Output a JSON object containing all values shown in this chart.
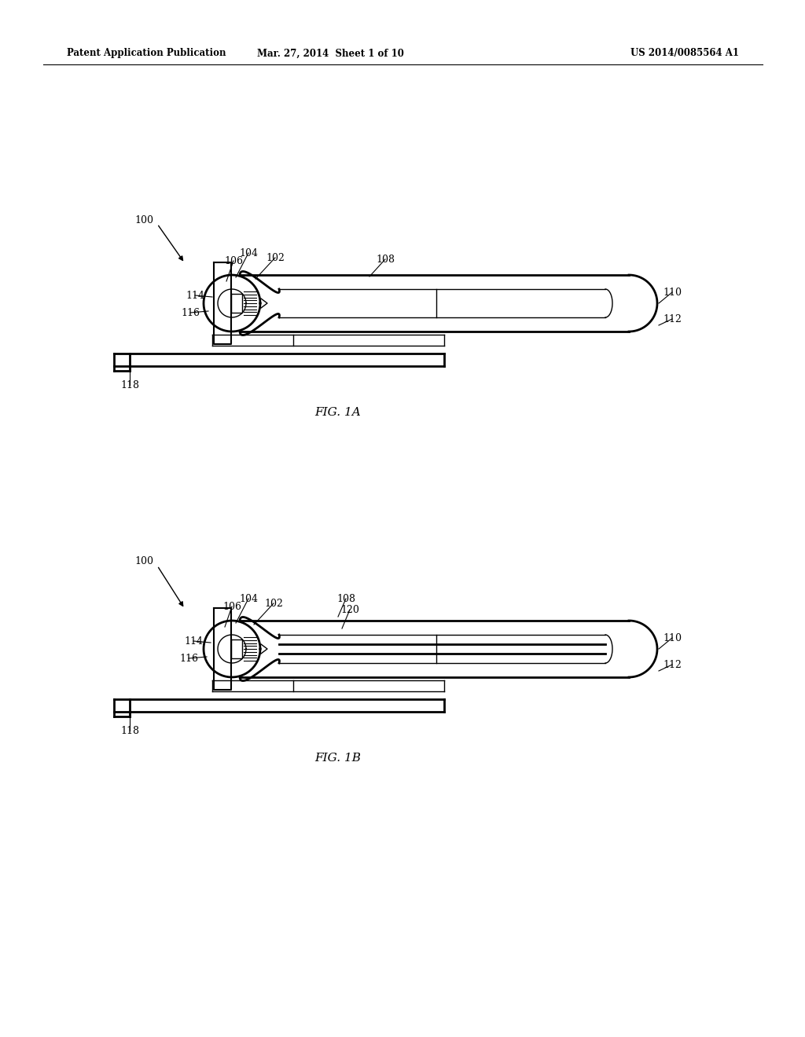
{
  "bg_color": "#ffffff",
  "line_color": "#000000",
  "header_left": "Patent Application Publication",
  "header_mid": "Mar. 27, 2014  Sheet 1 of 10",
  "header_right": "US 2014/0085564 A1",
  "fig1a_label": "FIG. 1A",
  "fig1b_label": "FIG. 1B"
}
